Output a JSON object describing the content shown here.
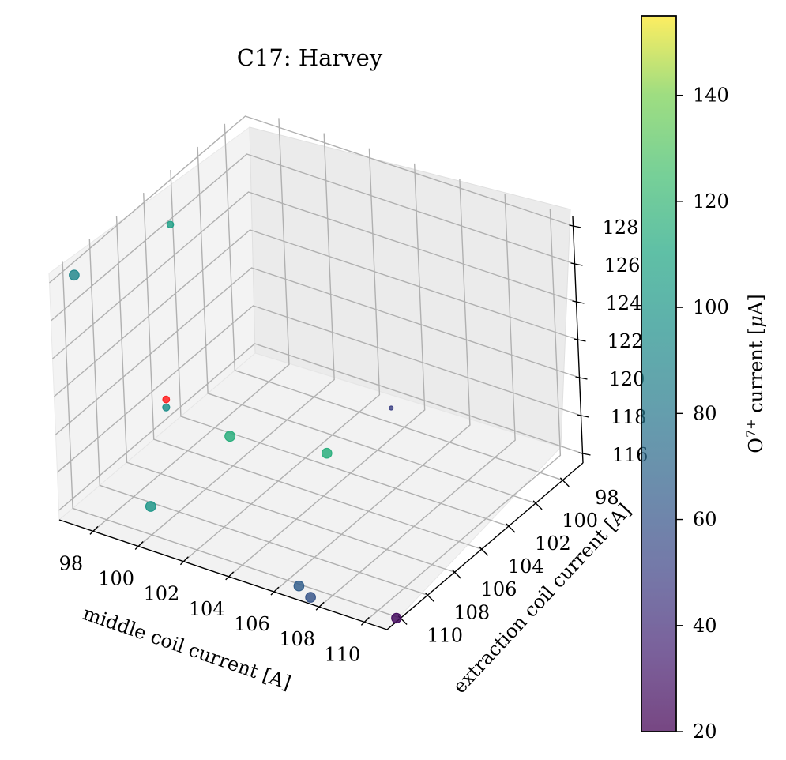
{
  "chart_data": {
    "type": "scatter",
    "title": "C17: Harvey",
    "xlabel": "middle coil current [A]",
    "ylabel": "extraction coil current [A]",
    "zlabel": "",
    "xlim": [
      96.5,
      111
    ],
    "ylim": [
      96.5,
      111
    ],
    "zlim": [
      115.5,
      128.5
    ],
    "xticks": [
      "98",
      "100",
      "102",
      "104",
      "106",
      "108",
      "110"
    ],
    "yticks": [
      "98",
      "100",
      "102",
      "104",
      "106",
      "108",
      "110"
    ],
    "zticks": [
      "116",
      "118",
      "120",
      "122",
      "124",
      "126",
      "128"
    ],
    "colorbar": {
      "label_main": "O",
      "label_sup": "7+",
      "label_rest": " current [",
      "label_mu": "μ",
      "label_end": "A]",
      "min": 20,
      "max": 155,
      "ticks": [
        "20",
        "40",
        "60",
        "80",
        "100",
        "120",
        "140"
      ],
      "colormap": "viridis"
    },
    "points": [
      {
        "x": 97.0,
        "y": 110.0,
        "z": 128.0,
        "value": 90
      },
      {
        "x": 96.7,
        "y": 102.5,
        "z": 126.0,
        "value": 105
      },
      {
        "x": 104.0,
        "y": 110.5,
        "z": 122.6,
        "value": 115
      },
      {
        "x": 108.0,
        "y": 110.0,
        "z": 123.0,
        "value": 115
      },
      {
        "x": 100.0,
        "y": 110.0,
        "z": 117.0,
        "value": 100
      },
      {
        "x": 96.8,
        "y": 103.5,
        "z": 117.0,
        "value": 95
      },
      {
        "x": 96.5,
        "y": 103.0,
        "z": 117.0,
        "value": null,
        "color": "#ff2020"
      },
      {
        "x": 106.5,
        "y": 110.0,
        "z": 115.4,
        "value": 65
      },
      {
        "x": 107.0,
        "y": 110.0,
        "z": 115.0,
        "value": 60
      },
      {
        "x": 110.5,
        "y": 109.5,
        "z": 115.0,
        "value": 25
      },
      {
        "x": 102.5,
        "y": 96.5,
        "z": 115.0,
        "value": 50
      }
    ]
  }
}
